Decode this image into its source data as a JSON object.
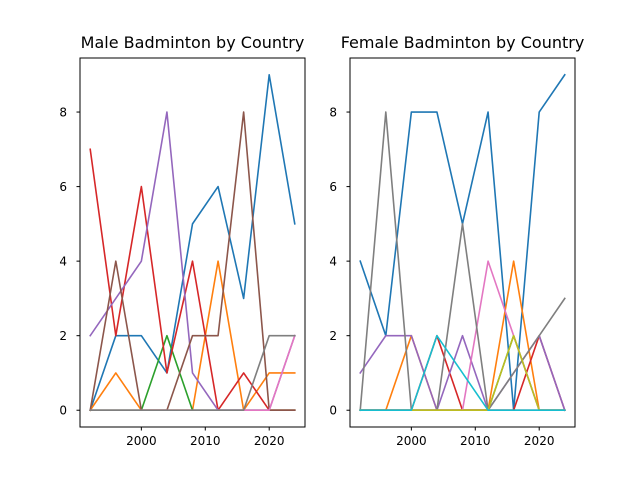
{
  "chart_data": [
    {
      "type": "line",
      "title": "Male Badminton by Country",
      "xlabel": "",
      "ylabel": "",
      "x": [
        1992,
        1996,
        2000,
        2004,
        2008,
        2012,
        2016,
        2020,
        2024
      ],
      "xlim": [
        1990.4,
        2025.6
      ],
      "ylim": [
        -0.45,
        9.45
      ],
      "xticks": [
        2000,
        2010,
        2020
      ],
      "yticks": [
        0,
        2,
        4,
        6,
        8
      ],
      "grid": false,
      "series": [
        {
          "color": "#1f77b4",
          "values": [
            0,
            2,
            2,
            1,
            5,
            6,
            3,
            9,
            5
          ]
        },
        {
          "color": "#ff7f0e",
          "values": [
            0,
            1,
            0,
            0,
            0,
            4,
            0,
            1,
            1
          ]
        },
        {
          "color": "#2ca02c",
          "values": [
            0,
            0,
            0,
            2,
            0,
            0,
            0,
            0,
            0
          ]
        },
        {
          "color": "#d62728",
          "values": [
            7,
            2,
            6,
            1,
            4,
            0,
            1,
            0,
            0
          ]
        },
        {
          "color": "#9467bd",
          "values": [
            2,
            3,
            4,
            8,
            1,
            0,
            0,
            0,
            2
          ]
        },
        {
          "color": "#8c564b",
          "values": [
            0,
            4,
            0,
            0,
            2,
            2,
            8,
            0,
            0
          ]
        },
        {
          "color": "#e377c2",
          "values": [
            0,
            0,
            0,
            0,
            0,
            0,
            0,
            0,
            2
          ]
        },
        {
          "color": "#7f7f7f",
          "values": [
            0,
            0,
            0,
            0,
            0,
            0,
            0,
            2,
            2
          ]
        }
      ]
    },
    {
      "type": "line",
      "title": "Female Badminton by Country",
      "xlabel": "",
      "ylabel": "",
      "x": [
        1992,
        1996,
        2000,
        2004,
        2008,
        2012,
        2016,
        2020,
        2024
      ],
      "xlim": [
        1990.4,
        2025.6
      ],
      "ylim": [
        -0.45,
        9.45
      ],
      "xticks": [
        2000,
        2010,
        2020
      ],
      "yticks": [
        0,
        2,
        4,
        6,
        8
      ],
      "grid": false,
      "series": [
        {
          "color": "#1f77b4",
          "values": [
            4,
            2,
            8,
            8,
            5,
            8,
            0,
            8,
            9
          ]
        },
        {
          "color": "#ff7f0e",
          "values": [
            0,
            0,
            2,
            0,
            0,
            0,
            4,
            0,
            0
          ]
        },
        {
          "color": "#2ca02c",
          "values": [
            0,
            0,
            0,
            0,
            0,
            0,
            2,
            0,
            0
          ]
        },
        {
          "color": "#d62728",
          "values": [
            0,
            0,
            0,
            2,
            0,
            0,
            0,
            2,
            0
          ]
        },
        {
          "color": "#9467bd",
          "values": [
            1,
            2,
            2,
            0,
            2,
            0,
            1,
            2,
            0
          ]
        },
        {
          "color": "#8c564b",
          "values": [
            0,
            0,
            0,
            0,
            0,
            0,
            0,
            0,
            0
          ]
        },
        {
          "color": "#e377c2",
          "values": [
            0,
            0,
            0,
            0,
            0,
            4,
            2,
            0,
            0
          ]
        },
        {
          "color": "#7f7f7f",
          "values": [
            0,
            8,
            0,
            0,
            5,
            0,
            1,
            2,
            3
          ]
        },
        {
          "color": "#bcbd22",
          "values": [
            0,
            0,
            0,
            0,
            0,
            0,
            2,
            0,
            0
          ]
        },
        {
          "color": "#17becf",
          "values": [
            0,
            0,
            0,
            2,
            1,
            0,
            0,
            0,
            0
          ]
        }
      ]
    }
  ]
}
